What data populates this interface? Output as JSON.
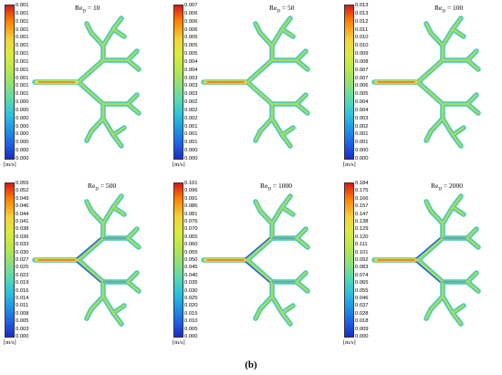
{
  "panels": [
    {
      "re_label": "Re",
      "re_sub": "D",
      "re_value": "= 10",
      "unit": "[m/s]",
      "ticks": [
        "0.001",
        "0.001",
        "0.001",
        "0.001",
        "0.001",
        "0.001",
        "0.001",
        "0.001",
        "0.001",
        "0.001",
        "0.001",
        "0.001",
        "0.000",
        "0.000",
        "0.000",
        "0.000",
        "0.000",
        "0.000",
        "0.000",
        "0.000"
      ]
    },
    {
      "re_label": "Re",
      "re_sub": "D",
      "re_value": "= 50",
      "unit": "[m/s]",
      "ticks": [
        "0.007",
        "0.006",
        "0.006",
        "0.006",
        "0.005",
        "0.005",
        "0.005",
        "0.004",
        "0.004",
        "0.003",
        "0.003",
        "0.003",
        "0.002",
        "0.002",
        "0.002",
        "0.001",
        "0.001",
        "0.001",
        "0.000",
        "0.000"
      ]
    },
    {
      "re_label": "Re",
      "re_sub": "D",
      "re_value": "= 100",
      "unit": "[m/s]",
      "ticks": [
        "0.013",
        "0.013",
        "0.012",
        "0.011",
        "0.010",
        "0.010",
        "0.009",
        "0.008",
        "0.007",
        "0.007",
        "0.006",
        "0.005",
        "0.004",
        "0.004",
        "0.003",
        "0.002",
        "0.001",
        "0.001",
        "0.000",
        "0.000"
      ]
    },
    {
      "re_label": "Re",
      "re_sub": "D",
      "re_value": "= 500",
      "unit": "[m/s]",
      "ticks": [
        "0.055",
        "0.052",
        "0.049",
        "0.046",
        "0.044",
        "0.041",
        "0.038",
        "0.036",
        "0.033",
        "0.030",
        "0.027",
        "0.025",
        "0.022",
        "0.019",
        "0.016",
        "0.014",
        "0.011",
        "0.008",
        "0.005",
        "0.003",
        "0.000"
      ]
    },
    {
      "re_label": "Re",
      "re_sub": "D",
      "re_value": "= 1000",
      "unit": "[m/s]",
      "ticks": [
        "0.101",
        "0.096",
        "0.091",
        "0.086",
        "0.081",
        "0.076",
        "0.070",
        "0.065",
        "0.060",
        "0.055",
        "0.050",
        "0.045",
        "0.040",
        "0.035",
        "0.030",
        "0.025",
        "0.020",
        "0.015",
        "0.010",
        "0.005",
        "0.000"
      ]
    },
    {
      "re_label": "Re",
      "re_sub": "D",
      "re_value": "= 2000",
      "unit": "[m/s]",
      "ticks": [
        "0.184",
        "0.175",
        "0.166",
        "0.157",
        "0.147",
        "0.138",
        "0.129",
        "0.120",
        "0.111",
        "0.101",
        "0.092",
        "0.083",
        "0.074",
        "0.065",
        "0.055",
        "0.046",
        "0.037",
        "0.028",
        "0.018",
        "0.009",
        "0.000"
      ]
    }
  ],
  "caption": "(b)"
}
